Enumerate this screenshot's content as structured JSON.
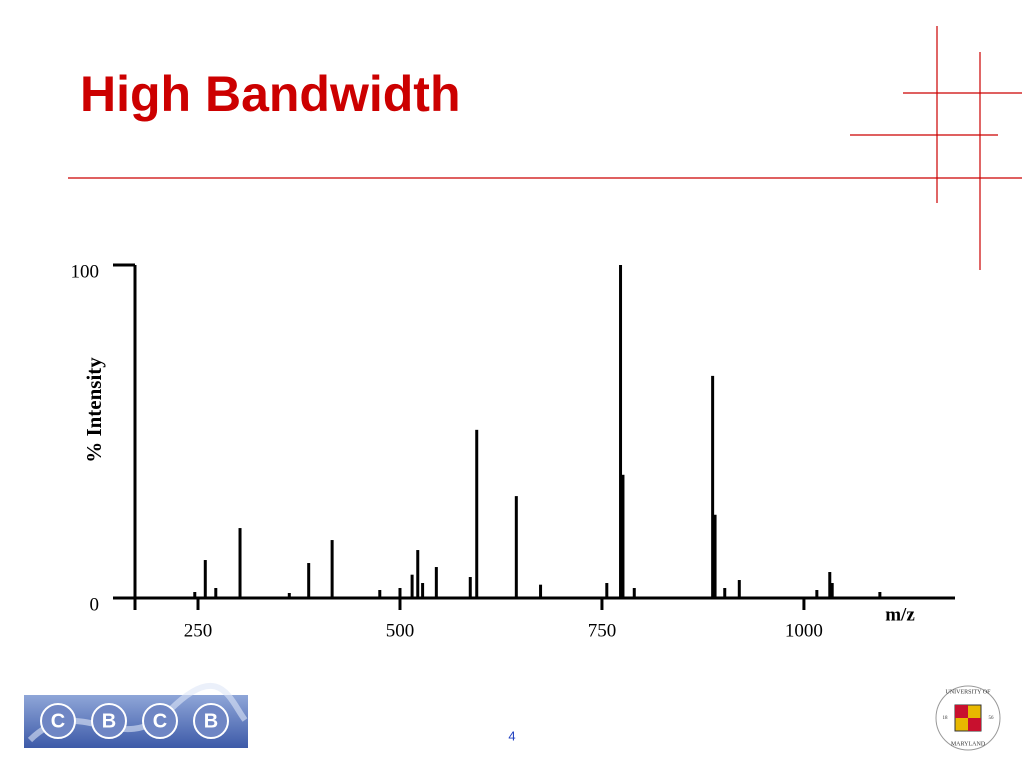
{
  "slide": {
    "title": "High Bandwidth",
    "page_number": "4",
    "logo_letters": [
      "C",
      "B",
      "C",
      "B"
    ],
    "seal": {
      "top": "UNIVERSITY OF",
      "bottom": "MARYLAND",
      "year_left": "18",
      "year_right": "56"
    }
  },
  "chart_data": {
    "type": "bar",
    "x_label": "m/z",
    "y_label": "% Intensity",
    "color": "#000000",
    "x": [
      246,
      259,
      272,
      302,
      363,
      387,
      416,
      475,
      500,
      515,
      522,
      528,
      545,
      587,
      595,
      644,
      674,
      756,
      773,
      776,
      790,
      887,
      890,
      902,
      920,
      1016,
      1032,
      1035,
      1094
    ],
    "values": [
      1.8,
      11.4,
      3,
      21,
      1.5,
      10.5,
      17.4,
      2.4,
      3,
      7,
      14.4,
      4.5,
      9.3,
      6.3,
      50.5,
      30.6,
      4,
      4.5,
      100,
      37,
      3,
      66.7,
      25,
      3,
      5.4,
      2.4,
      7.8,
      4.5,
      1.8
    ],
    "xlim": [
      172,
      1187
    ],
    "xticks": [
      250,
      500,
      750,
      1000
    ],
    "ylim": [
      0,
      100
    ],
    "yticks": [
      0,
      100
    ]
  }
}
